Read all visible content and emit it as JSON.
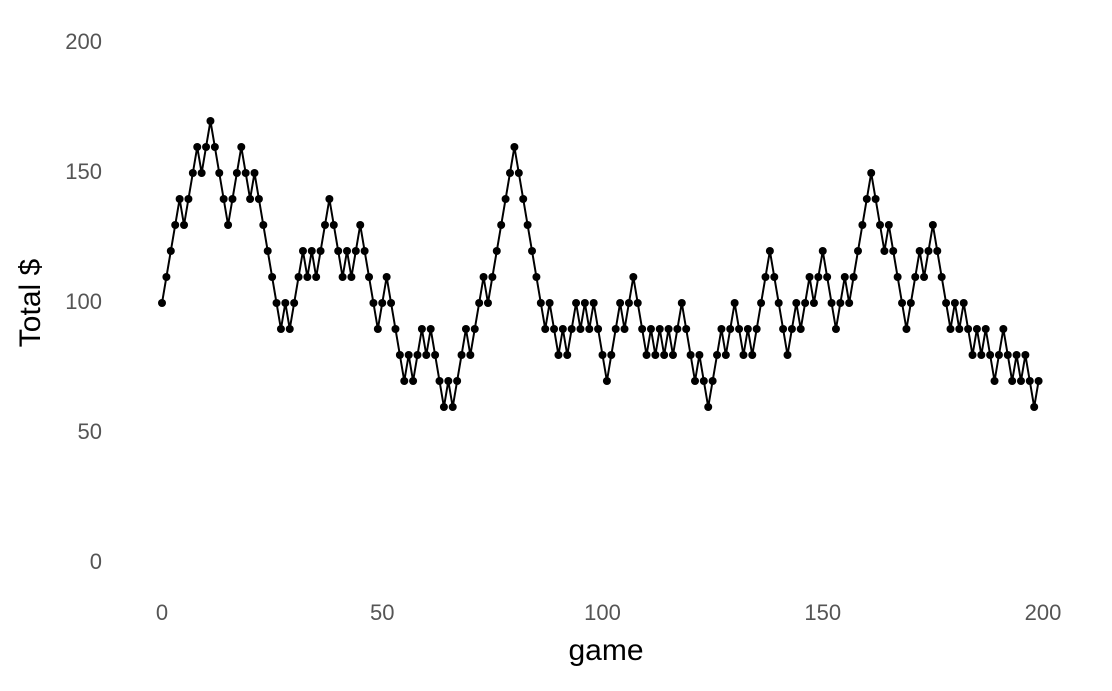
{
  "chart_data": {
    "type": "line",
    "xlabel": "game",
    "ylabel": "Total $",
    "x": [
      0,
      1,
      2,
      3,
      4,
      5,
      6,
      7,
      8,
      9,
      10,
      11,
      12,
      13,
      14,
      15,
      16,
      17,
      18,
      19,
      20,
      21,
      22,
      23,
      24,
      25,
      26,
      27,
      28,
      29,
      30,
      31,
      32,
      33,
      34,
      35,
      36,
      37,
      38,
      39,
      40,
      41,
      42,
      43,
      44,
      45,
      46,
      47,
      48,
      49,
      50,
      51,
      52,
      53,
      54,
      55,
      56,
      57,
      58,
      59,
      60,
      61,
      62,
      63,
      64,
      65,
      66,
      67,
      68,
      69,
      70,
      71,
      72,
      73,
      74,
      75,
      76,
      77,
      78,
      79,
      80,
      81,
      82,
      83,
      84,
      85,
      86,
      87,
      88,
      89,
      90,
      91,
      92,
      93,
      94,
      95,
      96,
      97,
      98,
      99,
      100,
      101,
      102,
      103,
      104,
      105,
      106,
      107,
      108,
      109,
      110,
      111,
      112,
      113,
      114,
      115,
      116,
      117,
      118,
      119,
      120,
      121,
      122,
      123,
      124,
      125,
      126,
      127,
      128,
      129,
      130,
      131,
      132,
      133,
      134,
      135,
      136,
      137,
      138,
      139,
      140,
      141,
      142,
      143,
      144,
      145,
      146,
      147,
      148,
      149,
      150,
      151,
      152,
      153,
      154,
      155,
      156,
      157,
      158,
      159,
      160,
      161,
      162,
      163,
      164,
      165,
      166,
      167,
      168,
      169,
      170,
      171,
      172,
      173,
      174,
      175,
      176,
      177,
      178,
      179,
      180,
      181,
      182,
      183,
      184,
      185,
      186,
      187,
      188,
      189,
      190,
      191,
      192,
      193,
      194,
      195,
      196,
      197,
      198,
      199
    ],
    "series": [
      {
        "color": "#000000",
        "values": [
          100,
          110,
          120,
          130,
          140,
          130,
          140,
          150,
          160,
          150,
          160,
          170,
          160,
          150,
          140,
          130,
          140,
          150,
          160,
          150,
          140,
          150,
          140,
          130,
          120,
          110,
          100,
          90,
          100,
          90,
          100,
          110,
          120,
          110,
          120,
          110,
          120,
          130,
          140,
          130,
          120,
          110,
          120,
          110,
          120,
          130,
          120,
          110,
          100,
          90,
          100,
          110,
          100,
          90,
          80,
          70,
          80,
          70,
          80,
          90,
          80,
          90,
          80,
          70,
          60,
          70,
          60,
          70,
          80,
          90,
          80,
          90,
          100,
          110,
          100,
          110,
          120,
          130,
          140,
          150,
          160,
          150,
          140,
          130,
          120,
          110,
          100,
          90,
          100,
          90,
          80,
          90,
          80,
          90,
          100,
          90,
          100,
          90,
          100,
          90,
          80,
          70,
          80,
          90,
          100,
          90,
          100,
          110,
          100,
          90,
          80,
          90,
          80,
          90,
          80,
          90,
          80,
          90,
          100,
          90,
          80,
          70,
          80,
          70,
          60,
          70,
          80,
          90,
          80,
          90,
          100,
          90,
          80,
          90,
          80,
          90,
          100,
          110,
          120,
          110,
          100,
          90,
          80,
          90,
          100,
          90,
          100,
          110,
          100,
          110,
          120,
          110,
          100,
          90,
          100,
          110,
          100,
          110,
          120,
          130,
          140,
          150,
          140,
          130,
          120,
          130,
          120,
          110,
          100,
          90,
          100,
          110,
          120,
          110,
          120,
          130,
          120,
          110,
          100,
          90,
          100,
          90,
          100,
          90,
          80,
          90,
          80,
          90,
          80,
          70,
          80,
          90,
          80,
          70,
          80,
          70,
          80,
          70,
          60,
          70
        ]
      }
    ],
    "xlim": [
      0,
      200
    ],
    "ylim": [
      0,
      200
    ],
    "xticks": [
      0,
      50,
      100,
      150,
      200
    ],
    "yticks": [
      0,
      50,
      100,
      150,
      200
    ],
    "grid": false
  }
}
